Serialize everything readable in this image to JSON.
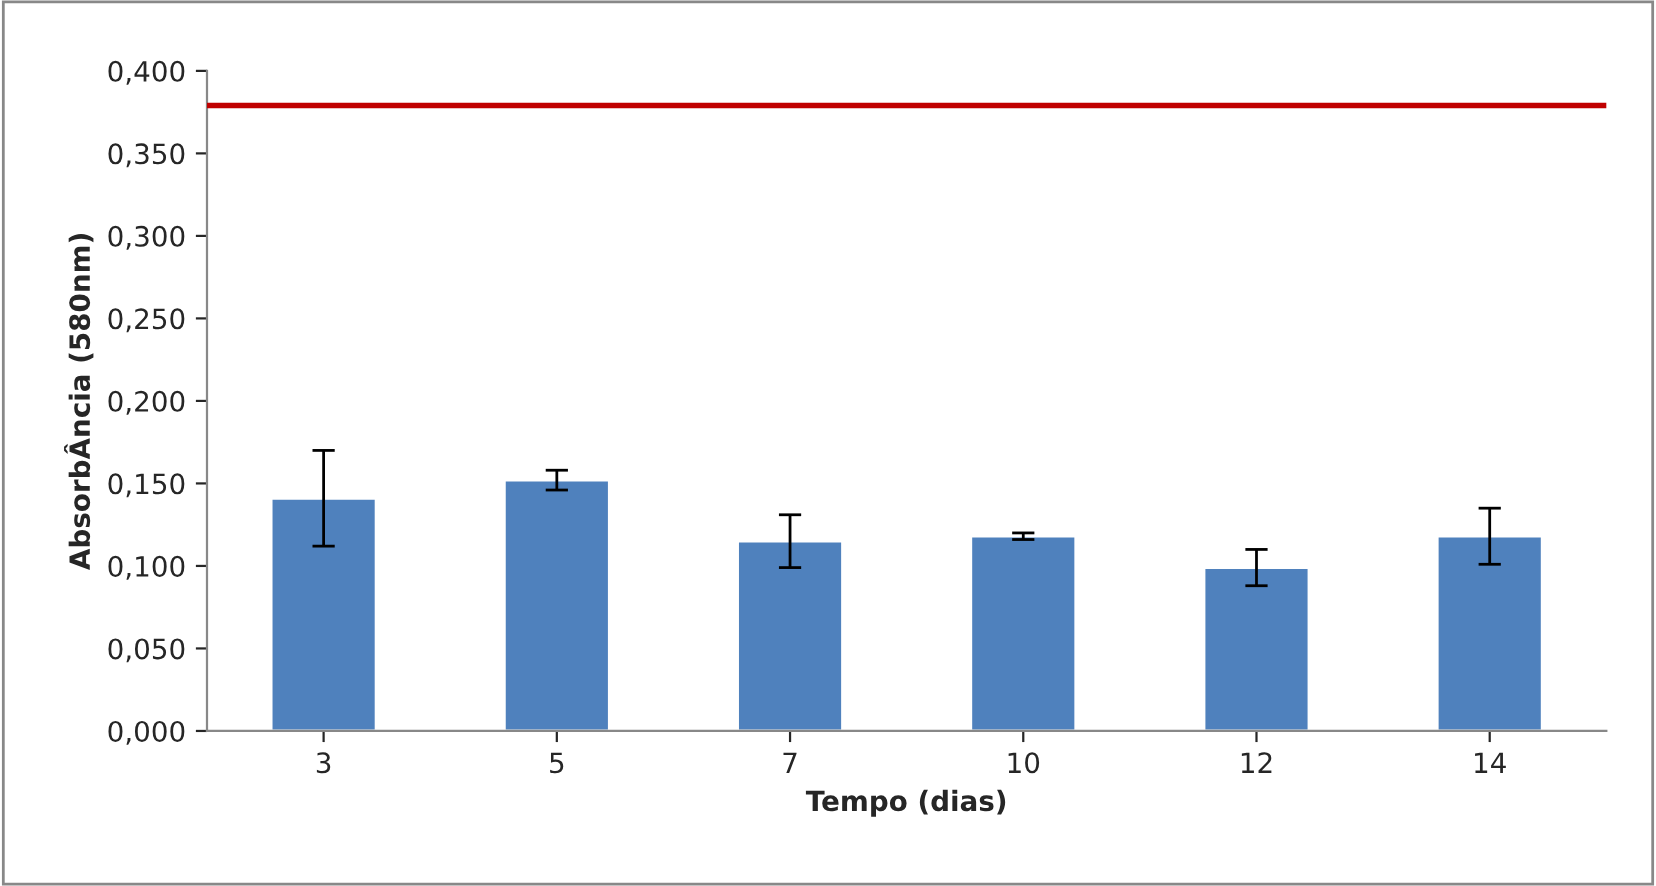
{
  "chart_data": {
    "type": "bar",
    "xlabel": "Tempo (dias)",
    "ylabel": "AbsorbÂncia (580nm)",
    "categories": [
      "3",
      "5",
      "7",
      "10",
      "12",
      "14"
    ],
    "values": [
      0.141,
      0.152,
      0.115,
      0.118,
      0.099,
      0.118
    ],
    "errors": [
      0.029,
      0.006,
      0.016,
      0.002,
      0.011,
      0.017
    ],
    "color": "#4f81bd",
    "ylim": [
      0,
      0.4
    ],
    "yticks": [
      {
        "value": 0,
        "label": "0,000"
      },
      {
        "value": 0.05,
        "label": "0,050"
      },
      {
        "value": 0.1,
        "label": "0,100"
      },
      {
        "value": 0.15,
        "label": "0,150"
      },
      {
        "value": 0.2,
        "label": "0,200"
      },
      {
        "value": 0.25,
        "label": "0,250"
      },
      {
        "value": 0.3,
        "label": "0,300"
      },
      {
        "value": 0.35,
        "label": "0,350"
      },
      {
        "value": 0.4,
        "label": "0,400"
      }
    ],
    "ref_lines": [
      {
        "axis": "y",
        "value": 0.379,
        "label": null,
        "color": "#c00000"
      }
    ],
    "grid": false
  }
}
